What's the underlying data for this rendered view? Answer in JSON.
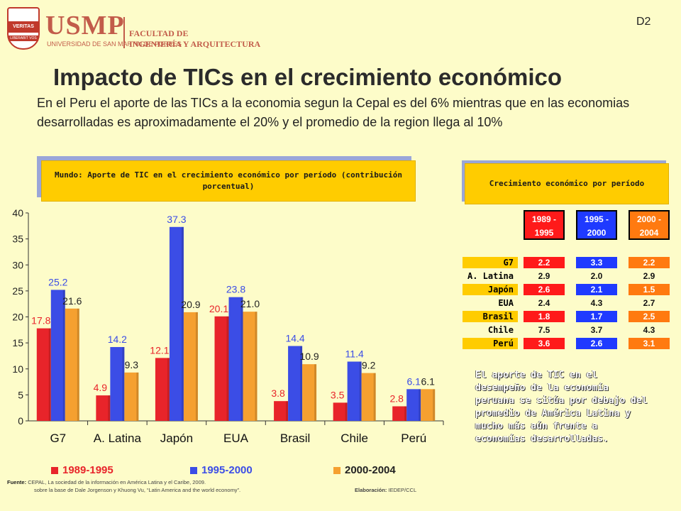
{
  "header": {
    "logo_text": "USMP",
    "logo_sub": "UNIVERSIDAD DE SAN MARTIN DE PORRES",
    "shield_top": "VERITAS",
    "shield_bottom": "LIBERABIT VOS",
    "faculty_line1": "FACULTAD DE",
    "faculty_line2": "INGENIERÍA Y ARQUITECTURA",
    "slide_code": "D2"
  },
  "title": "Impacto de TICs en el crecimiento económico",
  "intro": "En el Peru el aporte de las TICs a la economia segun la Cepal es del 6% mientras que en las economias desarrolladas es aproximadamente el 20% y el promedio de la region llega al 10%",
  "chart_box_title": "Mundo: Aporte de TIC en el crecimiento económico por período (contribución porcentual)",
  "table_box_title": "Crecimiento económico por período",
  "colors": {
    "p1": "#e8242a",
    "p2": "#3b4de6",
    "p3": "#f5a030",
    "bg": "#fdfcc9",
    "accent": "#ffcc00"
  },
  "chart_data": {
    "type": "bar",
    "categories": [
      "G7",
      "A. Latina",
      "Japón",
      "EUA",
      "Brasil",
      "Chile",
      "Perú"
    ],
    "series": [
      {
        "name": "1989-1995",
        "values": [
          17.8,
          4.9,
          12.1,
          20.1,
          3.8,
          3.5,
          2.8
        ]
      },
      {
        "name": "1995-2000",
        "values": [
          25.2,
          14.2,
          37.3,
          23.8,
          14.4,
          11.4,
          6.1
        ]
      },
      {
        "name": "2000-2004",
        "values": [
          21.6,
          9.3,
          20.9,
          21.0,
          10.9,
          9.2,
          6.1
        ]
      }
    ],
    "ylim": [
      0,
      40
    ],
    "yticks": [
      0,
      5,
      10,
      15,
      20,
      25,
      30,
      35,
      40
    ],
    "legend_position": "bottom"
  },
  "growth_table": {
    "headers": [
      "1989 - 1995",
      "1995 - 2000",
      "2000 - 2004"
    ],
    "rows": [
      {
        "label": "G7",
        "values": [
          "2.2",
          "3.3",
          "2.2"
        ],
        "highlight": true
      },
      {
        "label": "A. Latina",
        "values": [
          "2.9",
          "2.0",
          "2.9"
        ],
        "highlight": false
      },
      {
        "label": "Japón",
        "values": [
          "2.6",
          "2.1",
          "1.5"
        ],
        "highlight": true
      },
      {
        "label": "EUA",
        "values": [
          "2.4",
          "4.3",
          "2.7"
        ],
        "highlight": false
      },
      {
        "label": "Brasil",
        "values": [
          "1.8",
          "1.7",
          "2.5"
        ],
        "highlight": true
      },
      {
        "label": "Chile",
        "values": [
          "7.5",
          "3.7",
          "4.3"
        ],
        "highlight": false
      },
      {
        "label": "Perú",
        "values": [
          "3.6",
          "2.6",
          "3.1"
        ],
        "highlight": true
      }
    ]
  },
  "note": "El aporte de TIC en el desempeño de la economía peruana se sitúa por debajo del promedio de América Latina y mucho más aún frente a economías desarrolladas.",
  "source": {
    "label": "Fuente:",
    "line1": "CEPAL, La sociedad de la información en América Latina y el Caribe, 2009.",
    "line2": "sobre la base de Dale Jorgenson y Khuong Vu, “Latin America and the world economy”.",
    "elab_label": "Elaboración:",
    "elab_value": "IEDEP/CCL"
  }
}
